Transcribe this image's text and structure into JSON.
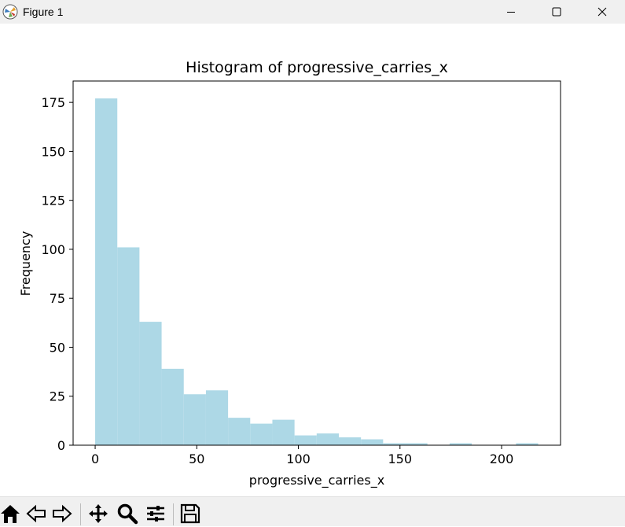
{
  "window": {
    "title": "Figure 1"
  },
  "toolbar": {
    "buttons": [
      "home-icon",
      "back-icon",
      "forward-icon",
      "pan-icon",
      "zoom-icon",
      "configure-subplots-icon",
      "save-icon"
    ]
  },
  "colors": {
    "bar": "#add8e6",
    "titlebar": "#f0f0f0"
  },
  "chart_data": {
    "type": "bar",
    "title": "Histogram of progressive_carries_x",
    "xlabel": "progressive_carries_x",
    "ylabel": "Frequency",
    "xlim": [
      -10.85,
      229.0
    ],
    "ylim": [
      0,
      185.9
    ],
    "xticks": [
      0,
      50,
      100,
      150,
      200
    ],
    "yticks": [
      0,
      25,
      50,
      75,
      100,
      125,
      150,
      175
    ],
    "bin_edges": [
      0,
      10.9,
      21.8,
      32.7,
      43.6,
      54.5,
      65.4,
      76.3,
      87.2,
      98.1,
      109.0,
      119.9,
      130.8,
      141.7,
      152.6,
      163.5,
      174.4,
      185.3,
      196.2,
      207.1,
      218.0
    ],
    "values": [
      177,
      101,
      63,
      39,
      26,
      28,
      14,
      11,
      13,
      5,
      6,
      4,
      3,
      1,
      1,
      0,
      1,
      0,
      0,
      1
    ],
    "grid": false,
    "legend": "none"
  }
}
